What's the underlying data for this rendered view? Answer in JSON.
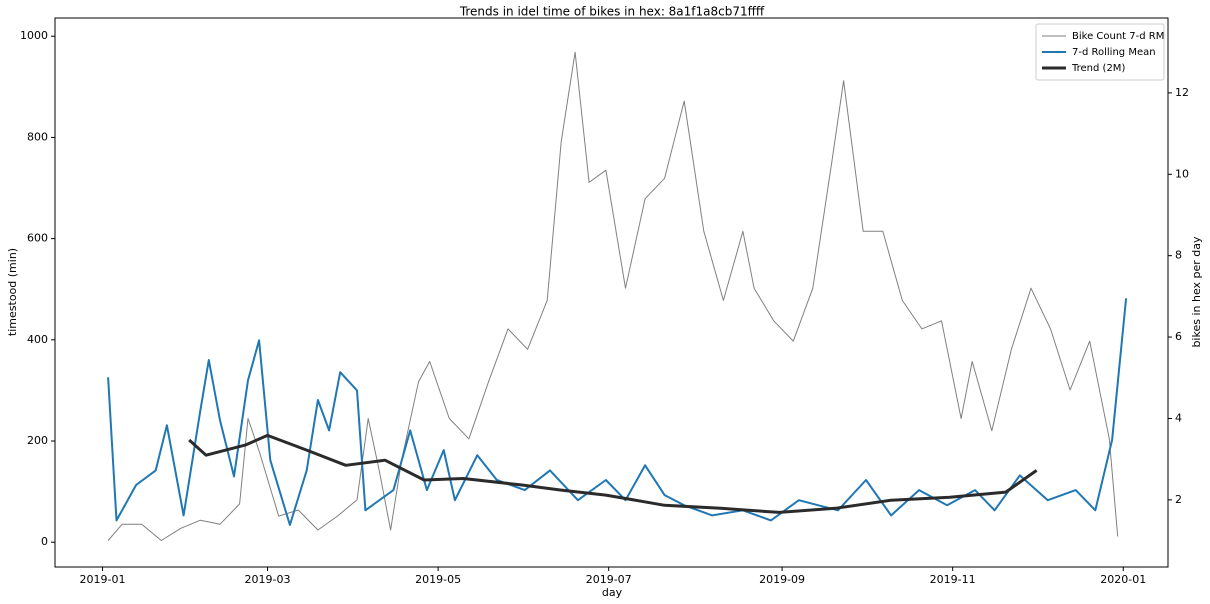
{
  "chart_data": {
    "type": "line",
    "title": "Trends in idel time of bikes in hex: 8a1f1a8cb71ffff",
    "xlabel": "day",
    "ylabel": "timestood (min)",
    "y2label": "bikes in hex per day",
    "xlim": [
      "2018-12-15",
      "2020-01-17"
    ],
    "xticks": [
      {
        "value": "2019-01-01",
        "label": "2019-01"
      },
      {
        "value": "2019-03-01",
        "label": "2019-03"
      },
      {
        "value": "2019-05-01",
        "label": "2019-05"
      },
      {
        "value": "2019-07-01",
        "label": "2019-07"
      },
      {
        "value": "2019-09-01",
        "label": "2019-09"
      },
      {
        "value": "2019-11-01",
        "label": "2019-11"
      },
      {
        "value": "2020-01-01",
        "label": "2020-01"
      }
    ],
    "ylim": [
      -49,
      1036
    ],
    "yticks": [
      0,
      200,
      400,
      600,
      800,
      1000
    ],
    "y2lim": [
      0.35,
      13.84
    ],
    "y2ticks": [
      2,
      4,
      6,
      8,
      10,
      12
    ],
    "grid": false,
    "legend": "upper right",
    "series": [
      {
        "name": "Bike Count 7-d RM",
        "color": "#808080",
        "width": 1,
        "axis": "y2",
        "x": [
          "2019-01-03",
          "2019-01-08",
          "2019-01-15",
          "2019-01-22",
          "2019-01-29",
          "2019-02-05",
          "2019-02-12",
          "2019-02-19",
          "2019-02-22",
          "2019-02-26",
          "2019-03-05",
          "2019-03-12",
          "2019-03-19",
          "2019-03-26",
          "2019-04-02",
          "2019-04-06",
          "2019-04-10",
          "2019-04-14",
          "2019-04-18",
          "2019-04-24",
          "2019-04-28",
          "2019-05-05",
          "2019-05-12",
          "2019-05-19",
          "2019-05-26",
          "2019-06-02",
          "2019-06-09",
          "2019-06-14",
          "2019-06-19",
          "2019-06-24",
          "2019-06-30",
          "2019-07-07",
          "2019-07-14",
          "2019-07-21",
          "2019-07-28",
          "2019-08-04",
          "2019-08-11",
          "2019-08-18",
          "2019-08-22",
          "2019-08-29",
          "2019-09-05",
          "2019-09-12",
          "2019-09-19",
          "2019-09-23",
          "2019-09-30",
          "2019-10-07",
          "2019-10-14",
          "2019-10-21",
          "2019-10-28",
          "2019-11-04",
          "2019-11-08",
          "2019-11-15",
          "2019-11-22",
          "2019-11-29",
          "2019-12-06",
          "2019-12-13",
          "2019-12-20",
          "2019-12-27",
          "2019-12-30"
        ],
        "values": [
          1.0,
          1.4,
          1.4,
          1.0,
          1.3,
          1.5,
          1.4,
          1.9,
          4.0,
          3.2,
          1.6,
          1.75,
          1.26,
          1.6,
          2.0,
          4.0,
          2.7,
          1.26,
          3.0,
          4.9,
          5.4,
          4.0,
          3.5,
          4.9,
          6.2,
          5.7,
          6.9,
          10.8,
          13.0,
          9.8,
          10.1,
          7.2,
          9.4,
          9.9,
          11.8,
          8.6,
          6.9,
          8.6,
          7.2,
          6.4,
          5.9,
          7.2,
          10.4,
          12.3,
          8.6,
          8.6,
          6.9,
          6.2,
          6.4,
          4.0,
          5.4,
          3.7,
          5.7,
          7.2,
          6.2,
          4.7,
          5.9,
          3.5,
          1.1
        ]
      },
      {
        "name": "7-d Rolling Mean",
        "color": "#1f77b4",
        "width": 2,
        "axis": "y",
        "x": [
          "2019-01-03",
          "2019-01-06",
          "2019-01-13",
          "2019-01-20",
          "2019-01-24",
          "2019-01-30",
          "2019-02-05",
          "2019-02-08",
          "2019-02-12",
          "2019-02-17",
          "2019-02-22",
          "2019-02-26",
          "2019-03-02",
          "2019-03-09",
          "2019-03-15",
          "2019-03-19",
          "2019-03-23",
          "2019-03-27",
          "2019-04-02",
          "2019-04-05",
          "2019-04-15",
          "2019-04-21",
          "2019-04-27",
          "2019-05-03",
          "2019-05-07",
          "2019-05-15",
          "2019-05-22",
          "2019-06-01",
          "2019-06-10",
          "2019-06-20",
          "2019-06-30",
          "2019-07-07",
          "2019-07-14",
          "2019-07-21",
          "2019-07-28",
          "2019-08-07",
          "2019-08-18",
          "2019-08-28",
          "2019-09-07",
          "2019-09-14",
          "2019-09-21",
          "2019-10-01",
          "2019-10-10",
          "2019-10-20",
          "2019-10-30",
          "2019-11-09",
          "2019-11-16",
          "2019-11-25",
          "2019-12-05",
          "2019-12-15",
          "2019-12-22",
          "2019-12-28",
          "2020-01-02"
        ],
        "values": [
          326,
          43,
          113,
          142,
          231,
          53,
          261,
          360,
          241,
          130,
          320,
          399,
          162,
          34,
          142,
          281,
          221,
          336,
          300,
          63,
          103,
          221,
          103,
          182,
          83,
          172,
          123,
          103,
          142,
          83,
          123,
          83,
          152,
          93,
          73,
          53,
          63,
          43,
          83,
          73,
          63,
          123,
          53,
          103,
          73,
          103,
          63,
          132,
          83,
          103,
          63,
          202,
          482
        ]
      },
      {
        "name": "Trend (2M)",
        "color": "#2b2b2b",
        "width": 3,
        "axis": "y",
        "x": [
          "2019-02-01",
          "2019-02-07",
          "2019-02-21",
          "2019-03-01",
          "2019-03-15",
          "2019-03-29",
          "2019-04-12",
          "2019-04-26",
          "2019-05-10",
          "2019-05-31",
          "2019-06-14",
          "2019-06-30",
          "2019-07-21",
          "2019-08-10",
          "2019-08-31",
          "2019-09-20",
          "2019-10-10",
          "2019-10-31",
          "2019-11-20",
          "2019-12-01"
        ],
        "values": [
          202,
          172,
          192,
          211,
          182,
          152,
          162,
          123,
          126,
          113,
          103,
          93,
          73,
          67,
          59,
          67,
          83,
          89,
          99,
          142
        ]
      }
    ]
  }
}
